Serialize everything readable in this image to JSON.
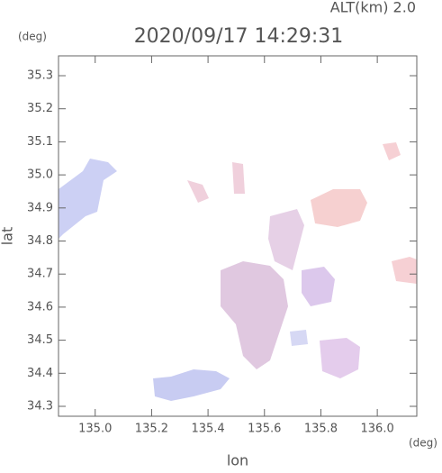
{
  "chart_data": {
    "type": "map",
    "title": "2020/09/17 14:29:31",
    "subtitle": "ALT(km) 2.0",
    "y_unit": "(deg)",
    "x_unit": "(deg)",
    "xlabel": "lon",
    "ylabel": "lat",
    "xlim": [
      134.87,
      136.14
    ],
    "ylim": [
      34.27,
      35.36
    ],
    "xticks": [
      {
        "value": 135.0,
        "label": "135.0"
      },
      135.2,
      135.4,
      135.6,
      135.8,
      {
        "value": 136.0,
        "label": "136.0"
      }
    ],
    "yticks": [
      {
        "value": 34.3,
        "label": "34.3"
      },
      {
        "value": 34.4,
        "label": "34.4"
      },
      {
        "value": 34.5,
        "label": "34.5"
      },
      {
        "value": 34.6,
        "label": "34.6"
      },
      {
        "value": 34.7,
        "label": "34.7"
      },
      {
        "value": 34.8,
        "label": "34.8"
      },
      {
        "value": 34.9,
        "label": "34.9"
      },
      {
        "value": 35.0,
        "label": "35.0"
      },
      {
        "value": 35.1,
        "label": "35.1"
      },
      {
        "value": 35.2,
        "label": "35.2"
      },
      {
        "value": 35.3,
        "label": "35.3"
      }
    ]
  }
}
